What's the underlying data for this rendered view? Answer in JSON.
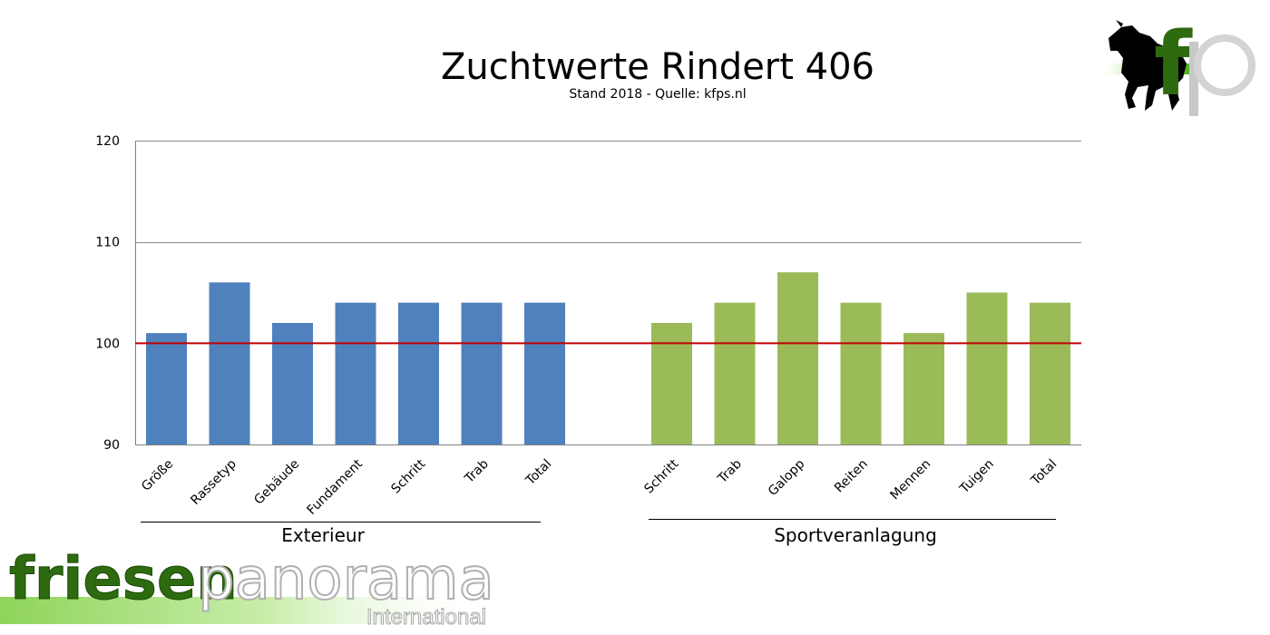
{
  "chart_data": {
    "type": "bar",
    "title": "Zuchtwerte Rindert 406",
    "subtitle": "Stand 2018 - Quelle: kfps.nl",
    "ylim": [
      90,
      120
    ],
    "yticks": [
      90,
      100,
      110,
      120
    ],
    "reference_line": {
      "value": 100,
      "color": "#c00000"
    },
    "grid": true,
    "groups": [
      {
        "name": "Exterieur",
        "color": "#4f81bd",
        "categories": [
          "Größe",
          "Rassetyp",
          "Gebäude",
          "Fundament",
          "Schritt",
          "Trab",
          "Total"
        ],
        "values": [
          101,
          106,
          102,
          104,
          104,
          104,
          104
        ]
      },
      {
        "name": "Sportveranlagung",
        "color": "#9bbb59",
        "categories": [
          "Schritt",
          "Trab",
          "Galopp",
          "Reiten",
          "Mennen",
          "Tuigen",
          "Total"
        ],
        "values": [
          102,
          104,
          107,
          104,
          101,
          105,
          104
        ]
      }
    ]
  },
  "logos": {
    "corner": {
      "text": "fp",
      "icon": "horse-silhouette-icon"
    },
    "brand": {
      "part1": "friesen",
      "part2": "panorama",
      "part3": "International"
    }
  },
  "colors": {
    "dark_green": "#2e6b10",
    "light_green": "#9bd86a",
    "gray": "#b8b8b8"
  }
}
